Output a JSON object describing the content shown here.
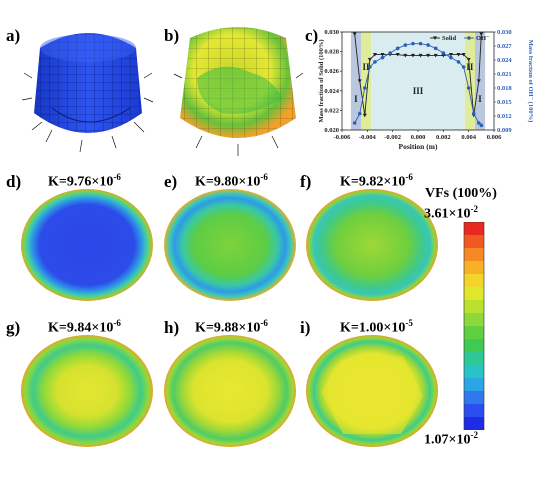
{
  "panels": {
    "a": "a)",
    "b": "b)",
    "c": "c)",
    "d": "d)",
    "e": "e)",
    "f": "f)",
    "g": "g)",
    "h": "h)",
    "i": "i)"
  },
  "k_values": {
    "d": {
      "prefix": "K=9.76×10",
      "exp": "-6"
    },
    "e": {
      "prefix": "K=9.80×10",
      "exp": "-6"
    },
    "f": {
      "prefix": "K=9.82×10",
      "exp": "-6"
    },
    "g": {
      "prefix": "K=9.84×10",
      "exp": "-6"
    },
    "h": {
      "prefix": "K=9.88×10",
      "exp": "-6"
    },
    "i": {
      "prefix": "K=1.00×10",
      "exp": "-5"
    }
  },
  "colorbar": {
    "title": "VFs (100%)",
    "max_prefix": "3.61×10",
    "max_exp": "-2",
    "min_prefix": "1.07×10",
    "min_exp": "-2",
    "colors": [
      "#e8291f",
      "#f05a22",
      "#f58a24",
      "#f8b027",
      "#f2d52a",
      "#dfe62c",
      "#b9e22e",
      "#8ed93a",
      "#5fd040",
      "#3fcb52",
      "#2ec896",
      "#28c3c6",
      "#2aa6e6",
      "#2f78ee",
      "#2b4ef0",
      "#1f2ce6"
    ]
  },
  "chart_data": {
    "type": "line",
    "xlabel": "Position (m)",
    "ylabel_left": "Mass fraction of Solid (100%)",
    "ylabel_right": "Mass fraction of OH⁻ (100%)",
    "xlim": [
      -0.006,
      0.006
    ],
    "ylim_left": [
      0.02,
      0.03
    ],
    "ylim_right": [
      0.009,
      0.03
    ],
    "xticks": [
      "-0.006",
      "-0.004",
      "-0.002",
      "0.000",
      "0.002",
      "0.004",
      "0.006"
    ],
    "yticks_left": [
      "0.020",
      "0.022",
      "0.024",
      "0.026",
      "0.028",
      "0.030"
    ],
    "yticks_right": [
      "0.009",
      "0.012",
      "0.015",
      "0.018",
      "0.021",
      "0.024",
      "0.027",
      "0.030"
    ],
    "regions": [
      {
        "label": "I",
        "x": [
          -0.0053,
          -0.0045
        ],
        "color": "#b9c8de"
      },
      {
        "label": "II",
        "x": [
          -0.0045,
          -0.0037
        ],
        "color": "#e0ec9a"
      },
      {
        "label": "III",
        "x": [
          -0.0037,
          0.0037
        ],
        "color": "#d9ecf0"
      },
      {
        "label": "II",
        "x": [
          0.0037,
          0.0045
        ],
        "color": "#e0ec9a"
      },
      {
        "label": "I",
        "x": [
          0.0045,
          0.0053
        ],
        "color": "#b9c8de"
      }
    ],
    "series": [
      {
        "name": "Solid",
        "axis": "left",
        "color": "#222222",
        "marker": "triangle-down",
        "x": [
          -0.005,
          -0.0046,
          -0.0042,
          -0.0038,
          -0.0034,
          -0.0028,
          -0.0022,
          -0.0016,
          -0.001,
          -0.0004,
          0.0002,
          0.0008,
          0.0014,
          0.002,
          0.0026,
          0.0032,
          0.0036,
          0.004,
          0.0044,
          0.0048,
          0.005
        ],
        "y": [
          0.0298,
          0.025,
          0.0215,
          0.0272,
          0.0277,
          0.0277,
          0.0277,
          0.0277,
          0.0276,
          0.0276,
          0.0276,
          0.0276,
          0.0276,
          0.0276,
          0.0277,
          0.0277,
          0.0277,
          0.0272,
          0.0215,
          0.025,
          0.0298
        ]
      },
      {
        "name": "OH⁻",
        "axis": "right",
        "color": "#2b5fb8",
        "marker": "circle",
        "x": [
          -0.005,
          -0.0046,
          -0.0042,
          -0.0038,
          -0.0034,
          -0.0028,
          -0.0022,
          -0.0016,
          -0.001,
          -0.0004,
          0.0002,
          0.0008,
          0.0014,
          0.002,
          0.0026,
          0.0032,
          0.0036,
          0.004,
          0.0044,
          0.0048,
          0.005
        ],
        "y": [
          0.0105,
          0.0125,
          0.018,
          0.0225,
          0.0236,
          0.0245,
          0.0255,
          0.0265,
          0.0272,
          0.0275,
          0.0275,
          0.0272,
          0.0265,
          0.0255,
          0.0245,
          0.0236,
          0.0225,
          0.018,
          0.0125,
          0.0105,
          0.01
        ]
      }
    ]
  }
}
